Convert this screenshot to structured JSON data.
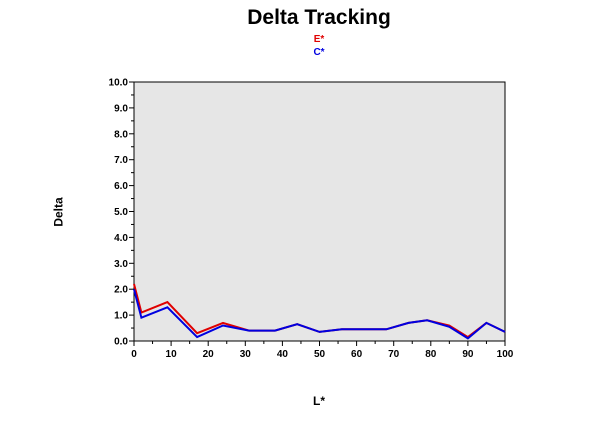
{
  "chart_data": {
    "type": "line",
    "title": "Delta Tracking",
    "xlabel": "L*",
    "ylabel": "Delta",
    "xlim": [
      0,
      100
    ],
    "ylim": [
      0,
      10
    ],
    "xticks": [
      "0",
      "10",
      "20",
      "30",
      "40",
      "50",
      "60",
      "70",
      "80",
      "90",
      "100"
    ],
    "yticks": [
      "0.0",
      "1.0",
      "2.0",
      "3.0",
      "4.0",
      "5.0",
      "6.0",
      "7.0",
      "8.0",
      "9.0",
      "10.0"
    ],
    "grid": false,
    "legend_position": "top",
    "series": [
      {
        "name": "E*",
        "color": "#e00000",
        "x": [
          0,
          2,
          9,
          17,
          24,
          31,
          38,
          44,
          50,
          56,
          62,
          68,
          74,
          79,
          85,
          90,
          95,
          100
        ],
        "y": [
          2.2,
          1.1,
          1.5,
          0.3,
          0.7,
          0.4,
          0.4,
          0.65,
          0.35,
          0.45,
          0.45,
          0.45,
          0.7,
          0.8,
          0.6,
          0.15,
          0.7,
          0.35
        ]
      },
      {
        "name": "C*",
        "color": "#0000e0",
        "x": [
          0,
          2,
          9,
          17,
          24,
          31,
          38,
          44,
          50,
          56,
          62,
          68,
          74,
          79,
          85,
          90,
          95,
          100
        ],
        "y": [
          2.0,
          0.9,
          1.3,
          0.15,
          0.6,
          0.4,
          0.4,
          0.65,
          0.35,
          0.45,
          0.45,
          0.45,
          0.7,
          0.8,
          0.55,
          0.1,
          0.7,
          0.35
        ]
      }
    ]
  }
}
